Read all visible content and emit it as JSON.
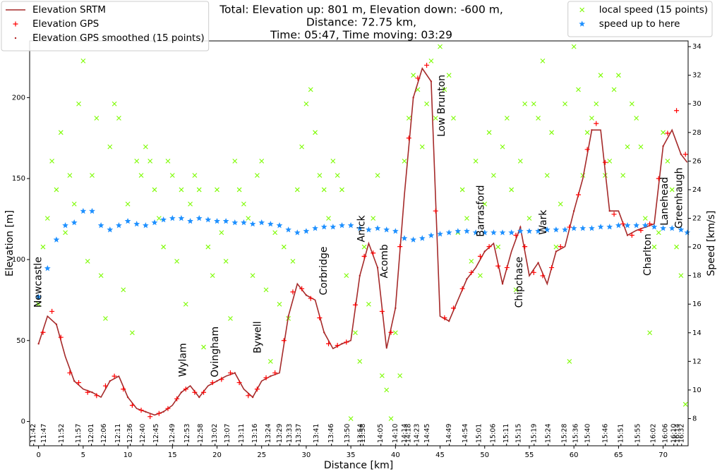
{
  "chart_data": {
    "type": "line",
    "title": [
      "Total: Elevation up: 801 m, Elevation down: -600 m,",
      "Distance: 72.75 km,",
      "Time: 05:47, Time moving: 03:29"
    ],
    "x_label": "Distance [km]",
    "y_label": "Elevation [m]",
    "y2_label": "Speed [km/s]",
    "xlim": [
      -1.0,
      72.8
    ],
    "ylim": [
      -15,
      235
    ],
    "y2lim": [
      6.1,
      34.4
    ],
    "xticks": [
      0,
      5,
      10,
      15,
      20,
      25,
      30,
      35,
      40,
      45,
      50,
      55,
      60,
      65,
      70
    ],
    "yticks": [
      0,
      50,
      100,
      150,
      200
    ],
    "y2ticks": [
      8,
      10,
      12,
      14,
      16,
      18,
      20,
      22,
      24,
      26,
      28,
      30,
      32,
      34
    ],
    "time_ticks": [
      {
        "value": -0.55,
        "label": "11:42"
      },
      {
        "value": 0.63,
        "label": "11:47"
      },
      {
        "value": 2.61,
        "label": "11:52"
      },
      {
        "value": 4.51,
        "label": "11:57"
      },
      {
        "value": 5.93,
        "label": "12:01"
      },
      {
        "value": 7.36,
        "label": "12:06"
      },
      {
        "value": 8.94,
        "label": "12:11"
      },
      {
        "value": 10.28,
        "label": "12:36"
      },
      {
        "value": 11.71,
        "label": "12:40"
      },
      {
        "value": 13.21,
        "label": "12:45"
      },
      {
        "value": 15.03,
        "label": "12:49"
      },
      {
        "value": 16.69,
        "label": "12:53"
      },
      {
        "value": 18.2,
        "label": "12:58"
      },
      {
        "value": 19.78,
        "label": "13:02"
      },
      {
        "value": 21.2,
        "label": "13:07"
      },
      {
        "value": 22.78,
        "label": "13:11"
      },
      {
        "value": 24.29,
        "label": "13:16"
      },
      {
        "value": 25.79,
        "label": "13:24"
      },
      {
        "value": 27.06,
        "label": "13:29"
      },
      {
        "value": 28.16,
        "label": "13:33"
      },
      {
        "value": 29.19,
        "label": "13:37"
      },
      {
        "value": 31.17,
        "label": "13:41"
      },
      {
        "value": 32.83,
        "label": "13:46"
      },
      {
        "value": 34.65,
        "label": "13:50"
      },
      {
        "value": 36.08,
        "label": "13:54"
      },
      {
        "value": 36.39,
        "label": "13:58"
      },
      {
        "value": 38.37,
        "label": "14:05"
      },
      {
        "value": 40.03,
        "label": "14:10"
      },
      {
        "value": 41.06,
        "label": "14:14"
      },
      {
        "value": 41.46,
        "label": "14:18"
      },
      {
        "value": 42.41,
        "label": "14:23"
      },
      {
        "value": 43.59,
        "label": "14:45"
      },
      {
        "value": 46.04,
        "label": "14:49"
      },
      {
        "value": 47.86,
        "label": "14:54"
      },
      {
        "value": 49.37,
        "label": "15:01"
      },
      {
        "value": 50.95,
        "label": "15:06"
      },
      {
        "value": 52.45,
        "label": "15:11"
      },
      {
        "value": 53.8,
        "label": "15:15"
      },
      {
        "value": 55.54,
        "label": "15:19"
      },
      {
        "value": 57.12,
        "label": "15:24"
      },
      {
        "value": 58.94,
        "label": "15:28"
      },
      {
        "value": 60.21,
        "label": "15:36"
      },
      {
        "value": 61.55,
        "label": "15:40"
      },
      {
        "value": 63.53,
        "label": "15:46"
      },
      {
        "value": 65.27,
        "label": "15:51"
      },
      {
        "value": 67.17,
        "label": "15:55"
      },
      {
        "value": 68.91,
        "label": "16:02"
      },
      {
        "value": 70.25,
        "label": "16:06"
      },
      {
        "value": 71.2,
        "label": "16:10"
      },
      {
        "value": 71.6,
        "label": "16:14"
      },
      {
        "value": 72.07,
        "label": "16:32"
      }
    ],
    "legend_loc": "upper left",
    "legend2_loc": "upper right",
    "series": [
      {
        "name": "Elevation SRTM",
        "color": "#a52a2a",
        "marker": "line",
        "axis": "y",
        "x": [
          0,
          1,
          2,
          3,
          4,
          5,
          6,
          7,
          8,
          9,
          10,
          11,
          12,
          13,
          14,
          15,
          16,
          17,
          18,
          19,
          20,
          21,
          22,
          23,
          24,
          25,
          26,
          27,
          28,
          29,
          30,
          31,
          32,
          33,
          34,
          35,
          36,
          37,
          38,
          39,
          40,
          41,
          42,
          43,
          44,
          45,
          46,
          47,
          48,
          49,
          50,
          51,
          52,
          53,
          54,
          55,
          56,
          57,
          58,
          59,
          60,
          61,
          62,
          63,
          64,
          65,
          66,
          67,
          68,
          69,
          70,
          71,
          72,
          72.7
        ],
        "values": [
          48,
          65,
          60,
          40,
          25,
          20,
          18,
          15,
          25,
          28,
          15,
          8,
          6,
          4,
          6,
          10,
          18,
          22,
          15,
          22,
          25,
          28,
          30,
          20,
          15,
          25,
          28,
          30,
          65,
          85,
          78,
          75,
          55,
          45,
          48,
          50,
          90,
          110,
          95,
          45,
          70,
          140,
          200,
          218,
          210,
          65,
          62,
          75,
          88,
          95,
          105,
          110,
          85,
          105,
          120,
          90,
          98,
          85,
          105,
          108,
          130,
          150,
          180,
          180,
          130,
          130,
          115,
          118,
          120,
          122,
          170,
          180,
          165,
          160
        ]
      },
      {
        "name": "Elevation GPS",
        "color": "#ff0000",
        "marker": "plus",
        "axis": "y",
        "x": [
          0.5,
          1.5,
          2.5,
          3.5,
          4.5,
          5.5,
          6.5,
          7.5,
          8.5,
          9.5,
          10.5,
          11.5,
          12.5,
          13.5,
          14.5,
          15.5,
          16.5,
          17.5,
          18.5,
          19.5,
          20.5,
          21.5,
          22.5,
          23.5,
          24.5,
          25.5,
          26.5,
          27.5,
          28.5,
          29.5,
          30.5,
          31.5,
          32.5,
          33.5,
          34.5,
          35.5,
          36.5,
          37.5,
          38.5,
          39.5,
          40.5,
          41.5,
          42.5,
          43.5,
          44.5,
          45.5,
          46.5,
          47.5,
          48.5,
          49.5,
          50.5,
          51.5,
          52.5,
          53.5,
          54.5,
          55.5,
          56.5,
          57.5,
          58.5,
          59.5,
          60.5,
          61.5,
          62.5,
          63.5,
          64.5,
          65.5,
          66.5,
          67.5,
          68.5,
          69.5,
          70.5,
          71.5,
          72.5
        ],
        "values": [
          55,
          68,
          52,
          30,
          24,
          18,
          16,
          22,
          28,
          20,
          10,
          7,
          3,
          5,
          8,
          14,
          20,
          18,
          18,
          24,
          26,
          30,
          24,
          16,
          20,
          27,
          30,
          50,
          80,
          82,
          76,
          64,
          48,
          47,
          49,
          72,
          102,
          104,
          68,
          55,
          108,
          175,
          212,
          220,
          130,
          64,
          70,
          82,
          92,
          102,
          108,
          96,
          95,
          115,
          108,
          92,
          90,
          95,
          108,
          120,
          140,
          168,
          184,
          160,
          128,
          122,
          115,
          118,
          122,
          150,
          178,
          192,
          165
        ]
      },
      {
        "name": "Elevation GPS smoothed (15 points)",
        "color": "#b22222",
        "marker": "dot",
        "axis": "y",
        "x": [
          0,
          2,
          4,
          6,
          8,
          10,
          12,
          14,
          16,
          18,
          20,
          22,
          24,
          26,
          28,
          30,
          32,
          34,
          36,
          38,
          40,
          42,
          44,
          46,
          48,
          50,
          52,
          54,
          56,
          58,
          60,
          62,
          64,
          66,
          68,
          70,
          72
        ],
        "values": [
          48,
          60,
          25,
          18,
          25,
          15,
          6,
          6,
          18,
          15,
          25,
          30,
          15,
          28,
          65,
          78,
          55,
          48,
          90,
          95,
          70,
          200,
          210,
          62,
          88,
          105,
          85,
          120,
          98,
          105,
          130,
          180,
          130,
          115,
          120,
          170,
          165
        ]
      },
      {
        "name": "local speed (15 points)",
        "color": "#7cfc00",
        "marker": "x",
        "axis": "y2",
        "x": [
          0,
          0.5,
          1,
          1.5,
          2,
          2.5,
          3,
          3.5,
          4,
          4.5,
          5,
          5.5,
          6,
          6.5,
          7,
          7.5,
          8,
          8.5,
          9,
          9.5,
          10,
          10.5,
          11,
          11.5,
          12,
          12.5,
          13,
          13.5,
          14,
          14.5,
          15,
          15.5,
          16,
          16.5,
          17,
          17.5,
          18,
          18.5,
          19,
          19.5,
          20,
          20.5,
          21,
          21.5,
          22,
          22.5,
          23,
          23.5,
          24,
          24.5,
          25,
          25.5,
          26,
          26.5,
          27,
          27.5,
          28,
          28.5,
          29,
          29.5,
          30,
          30.5,
          31,
          31.5,
          32,
          32.5,
          33,
          33.5,
          34,
          34.5,
          35,
          35.5,
          36,
          36.5,
          37,
          37.5,
          38,
          38.5,
          39,
          39.5,
          40,
          40.5,
          41,
          41.5,
          42,
          42.5,
          43,
          43.5,
          44,
          44.5,
          45,
          45.5,
          46,
          46.5,
          47,
          47.5,
          48,
          48.5,
          49,
          49.5,
          50,
          50.5,
          51,
          51.5,
          52,
          52.5,
          53,
          53.5,
          54,
          54.5,
          55,
          55.5,
          56,
          56.5,
          57,
          57.5,
          58,
          58.5,
          59,
          59.5,
          60,
          60.5,
          61,
          61.5,
          62,
          62.5,
          63,
          63.5,
          64,
          64.5,
          65,
          65.5,
          66,
          66.5,
          67,
          67.5,
          68,
          68.5,
          69,
          69.5,
          70,
          70.5,
          71,
          71.5,
          72,
          72.5
        ],
        "values": [
          16,
          20,
          22,
          26,
          24,
          28,
          21,
          25,
          23,
          30,
          33,
          19,
          25,
          29,
          18,
          15,
          27,
          30,
          29,
          17,
          23,
          14,
          26,
          25,
          27,
          26,
          24,
          22,
          20,
          26,
          25,
          19,
          24,
          16,
          23,
          25,
          24,
          13,
          20,
          18,
          24,
          21,
          19,
          15,
          26,
          24,
          23,
          22,
          18,
          25,
          26,
          17,
          12,
          21,
          16,
          20,
          15,
          19,
          24,
          27,
          30,
          31,
          28,
          25,
          24,
          22,
          26,
          25,
          24,
          18,
          8,
          14,
          12,
          20,
          16,
          22,
          25,
          11,
          10,
          8,
          14,
          11,
          26,
          29,
          32,
          31,
          27,
          30,
          33,
          29,
          34,
          31,
          32,
          29,
          21,
          24,
          22,
          19,
          26,
          18,
          23,
          28,
          25,
          20,
          27,
          29,
          24,
          17,
          26,
          30,
          22,
          30,
          29,
          33,
          25,
          28,
          20,
          23,
          30,
          12,
          34,
          31,
          25,
          28,
          29,
          30,
          32,
          25,
          26,
          31,
          32,
          25,
          27,
          30,
          29,
          27,
          22,
          14,
          20,
          21,
          28,
          26,
          24,
          20,
          18,
          9
        ]
      },
      {
        "name": "speed up to here",
        "color": "#1e90ff",
        "marker": "star",
        "axis": "y2",
        "x": [
          0,
          1,
          2,
          3,
          4,
          5,
          6,
          7,
          8,
          9,
          10,
          11,
          12,
          13,
          14,
          15,
          16,
          17,
          18,
          19,
          20,
          21,
          22,
          23,
          24,
          25,
          26,
          27,
          28,
          29,
          30,
          31,
          32,
          33,
          34,
          35,
          36,
          37,
          38,
          39,
          40,
          41,
          42,
          43,
          44,
          45,
          46,
          47,
          48,
          49,
          50,
          51,
          52,
          53,
          54,
          55,
          56,
          57,
          58,
          59,
          60,
          61,
          62,
          63,
          64,
          65,
          66,
          67,
          68,
          69,
          70,
          71,
          72,
          72.7
        ],
        "values": [
          16.5,
          18.5,
          20.5,
          21.5,
          21.7,
          22.5,
          22.5,
          21.5,
          21.2,
          21.5,
          21.8,
          21.6,
          21.5,
          21.7,
          21.9,
          22,
          22,
          21.8,
          22,
          21.9,
          21.8,
          21.8,
          21.7,
          21.7,
          21.6,
          21.7,
          21.6,
          21.5,
          21.2,
          21,
          21.1,
          21.3,
          21.4,
          21.4,
          21.5,
          21.5,
          21.3,
          21.2,
          21.3,
          21.2,
          21.1,
          20.6,
          20.5,
          20.6,
          20.8,
          20.9,
          21,
          21.1,
          21.1,
          21,
          21,
          21,
          21,
          21,
          21.1,
          21.1,
          21.1,
          21.2,
          21.2,
          21.2,
          21.3,
          21.3,
          21.3,
          21.4,
          21.4,
          21.5,
          21.5,
          21.5,
          21.5,
          21.4,
          21.3,
          21.3,
          21.2,
          21.0
        ]
      }
    ],
    "annotations": [
      {
        "text": "Newcastle",
        "x": 0,
        "y": 86
      },
      {
        "text": "Wylam",
        "x": 16.2,
        "y": 38
      },
      {
        "text": "Ovingham",
        "x": 19.8,
        "y": 43
      },
      {
        "text": "Bywell",
        "x": 24.6,
        "y": 52
      },
      {
        "text": "Corbridge",
        "x": 32,
        "y": 93
      },
      {
        "text": "Anick",
        "x": 36.2,
        "y": 119
      },
      {
        "text": "Acomb",
        "x": 38.8,
        "y": 99
      },
      {
        "text": "Low Brunton",
        "x": 45.2,
        "y": 195
      },
      {
        "text": "Barrasford",
        "x": 49.6,
        "y": 130
      },
      {
        "text": "Chipchase",
        "x": 53.9,
        "y": 86
      },
      {
        "text": "Wark",
        "x": 56.6,
        "y": 123
      },
      {
        "text": "Charlton",
        "x": 68.3,
        "y": 103
      },
      {
        "text": "Lanehead",
        "x": 70.2,
        "y": 136
      },
      {
        "text": "Greenhaugh",
        "x": 71.8,
        "y": 138
      }
    ]
  }
}
